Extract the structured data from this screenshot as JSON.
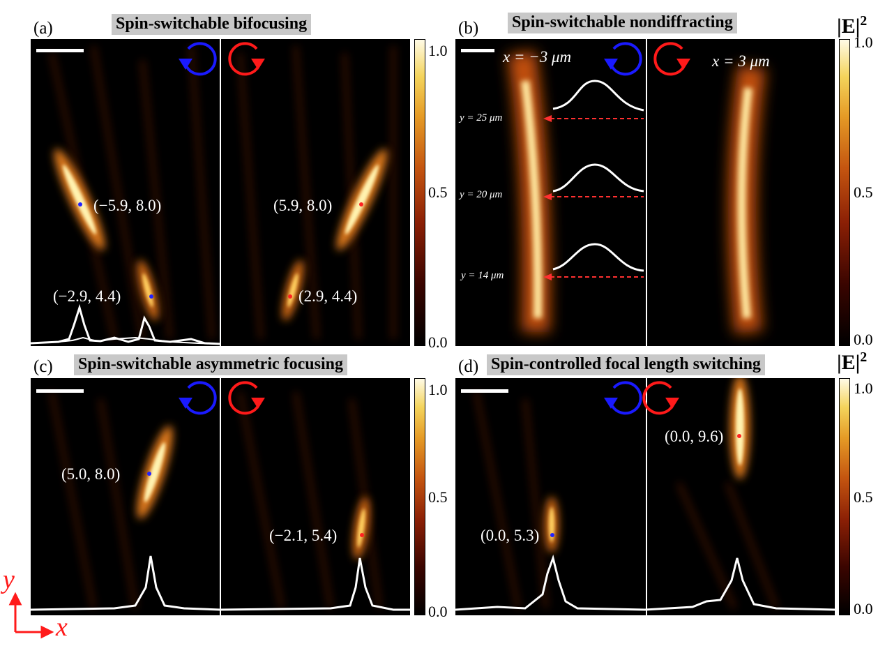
{
  "panels": {
    "a": {
      "letter": "(a)",
      "title": "Spin-switchable bifocusing",
      "annotations": [
        "(−5.9, 8.0)",
        "(5.9, 8.0)",
        "(−2.9, 4.4)",
        "(2.9, 4.4)"
      ]
    },
    "b": {
      "letter": "(b)",
      "title": "Spin-switchable nondiffracting",
      "x_left": "x = −3 μm",
      "x_right": "x = 3 μm",
      "y_labels": [
        "y = 25 μm",
        "y = 20 μm",
        "y = 14 μm"
      ]
    },
    "c": {
      "letter": "(c)",
      "title": "Spin-switchable asymmetric focusing",
      "annotations": [
        "(5.0, 8.0)",
        "(−2.1, 5.4)"
      ]
    },
    "d": {
      "letter": "(d)",
      "title": "Spin-controlled focal length switching",
      "annotations": [
        "(0.0, 9.6)",
        "(0.0, 5.3)"
      ]
    }
  },
  "colorbar": {
    "label": "|E|",
    "power": "2",
    "ticks": [
      "1.0",
      "0.5",
      "0.0"
    ]
  },
  "axes": {
    "y": "y",
    "x": "x"
  },
  "colors": {
    "lcp": "#1a1aff",
    "rcp": "#ff1a1a",
    "focus_point_blue": "#2222ff",
    "focus_point_red": "#ff2222"
  }
}
